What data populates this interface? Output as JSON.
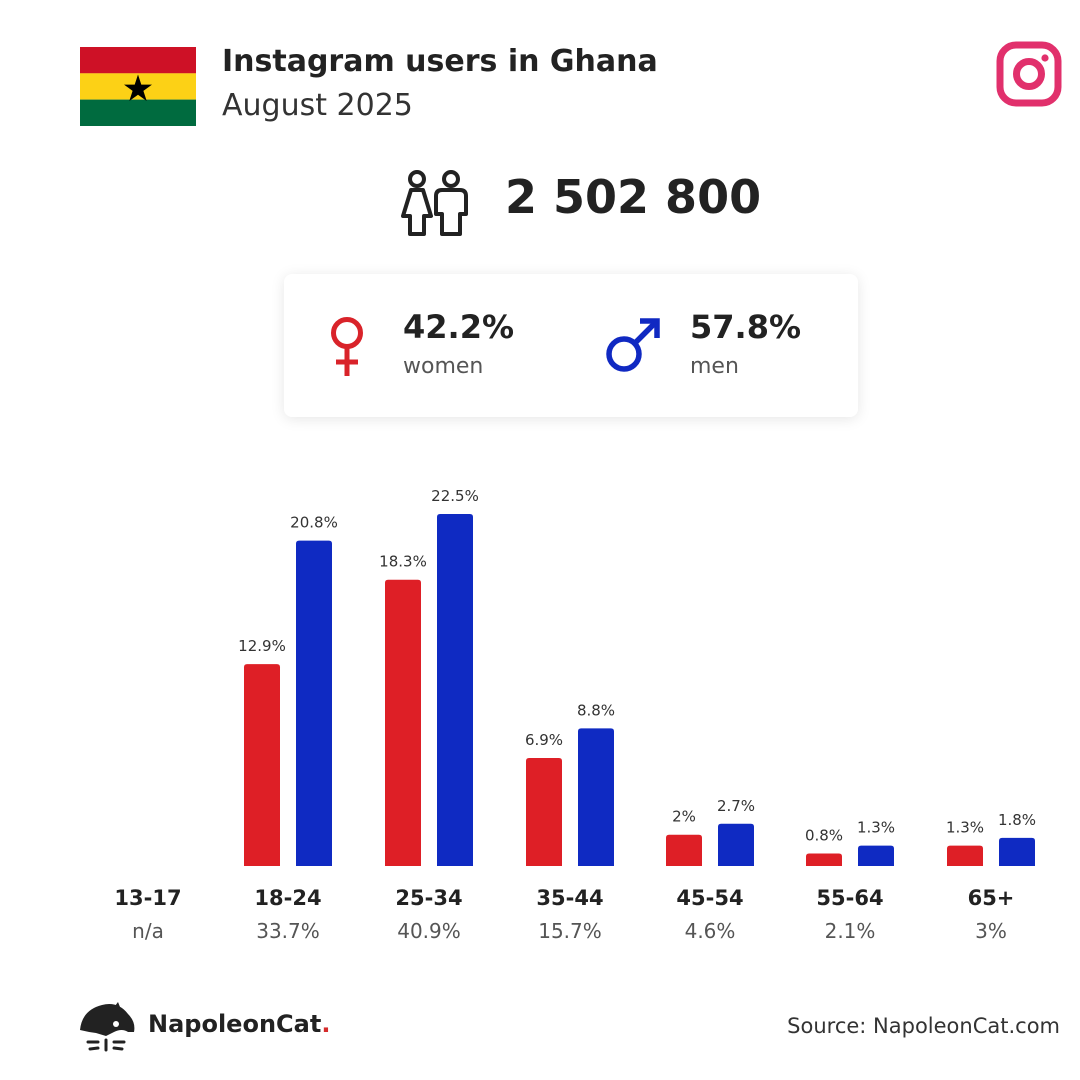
{
  "header": {
    "title": "Instagram users in Ghana",
    "subtitle": "August 2025",
    "flag_colors": [
      "#ce1126",
      "#fcd116",
      "#006b3f"
    ],
    "flag_icon": "ghana-flag-icon",
    "platform_icon": "instagram-icon",
    "platform_color": "#e1306c"
  },
  "total": {
    "icon": "people-icon",
    "value": "2 502 800"
  },
  "gender": {
    "women": {
      "icon": "female-icon",
      "percent": "42.2%",
      "label": "women",
      "color": "#d9232a"
    },
    "men": {
      "icon": "male-icon",
      "percent": "57.8%",
      "label": "men",
      "color": "#1029c2"
    }
  },
  "chart_data": {
    "type": "bar",
    "categories": [
      "13-17",
      "18-24",
      "25-34",
      "35-44",
      "45-54",
      "55-64",
      "65+"
    ],
    "category_totals": [
      "n/a",
      "33.7%",
      "40.9%",
      "15.7%",
      "4.6%",
      "2.1%",
      "3%"
    ],
    "series": [
      {
        "key": "women",
        "color": "#de1f26",
        "values": [
          null,
          12.9,
          18.3,
          6.9,
          2,
          0.8,
          1.3
        ],
        "labels": [
          "",
          "12.9%",
          "18.3%",
          "6.9%",
          "2%",
          "0.8%",
          "1.3%"
        ]
      },
      {
        "key": "men",
        "color": "#0f2ac2",
        "values": [
          null,
          20.8,
          22.5,
          8.8,
          2.7,
          1.3,
          1.8
        ],
        "labels": [
          "",
          "20.8%",
          "22.5%",
          "8.8%",
          "2.7%",
          "1.3%",
          "1.8%"
        ]
      }
    ],
    "ylim": [
      0,
      22.5
    ],
    "grid": false,
    "legend": "none"
  },
  "footer": {
    "logo_icon": "napoleoncat-logo-icon",
    "brand": "NapoleonCat",
    "brand_dot": ".",
    "source": "Source: NapoleonCat.com"
  }
}
